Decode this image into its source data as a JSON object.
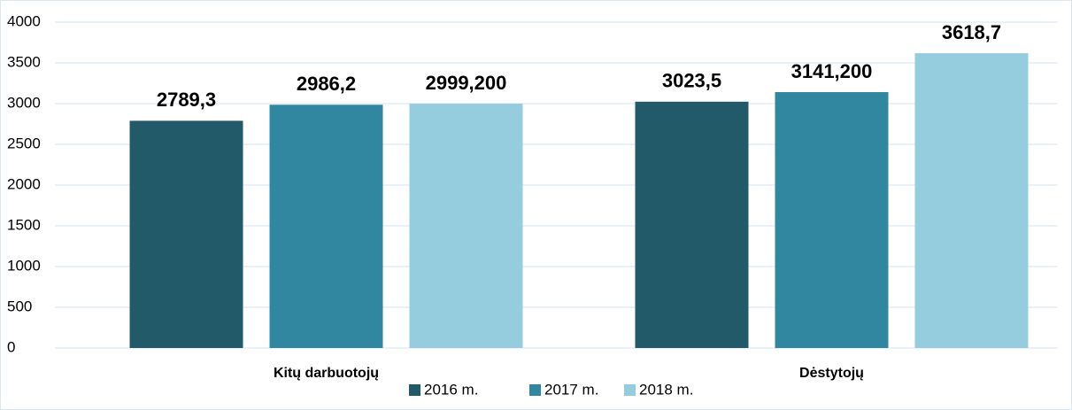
{
  "chart_data": {
    "type": "bar",
    "categories": [
      "Kitų darbuotojų",
      "Dėstytojų"
    ],
    "series": [
      {
        "name": "2016 m.",
        "color": "#235a69",
        "values": [
          2789.3,
          3023.5
        ],
        "value_labels": [
          "2789,3",
          "3023,5"
        ]
      },
      {
        "name": "2017 m.",
        "color": "#3287a0",
        "values": [
          2986.2,
          3141.2
        ],
        "value_labels": [
          "2986,2",
          "3141,200"
        ]
      },
      {
        "name": "2018 m.",
        "color": "#95cddf",
        "values": [
          2999.2,
          3618.7
        ],
        "value_labels": [
          "2999,200",
          "3618,7"
        ]
      }
    ],
    "ylim": [
      0,
      4000
    ],
    "yticks": [
      0,
      500,
      1000,
      1500,
      2000,
      2500,
      3000,
      3500,
      4000
    ],
    "grid": true,
    "legend": "bottom"
  }
}
